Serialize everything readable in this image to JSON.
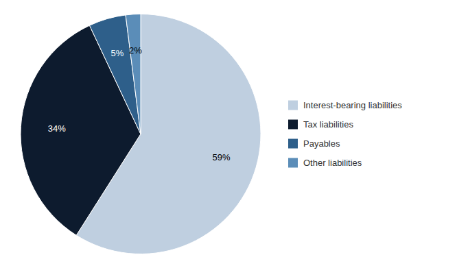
{
  "chart_data": {
    "type": "pie",
    "categories": [
      "Interest-bearing liabilities",
      "Tax liabilities",
      "Payables",
      "Other liabilities"
    ],
    "values": [
      59,
      34,
      5,
      2
    ],
    "value_labels": [
      "59%",
      "34%",
      "5%",
      "2%"
    ],
    "colors": [
      "#bfcfe0",
      "#0d1b2e",
      "#2e5f8a",
      "#5b8db8"
    ],
    "data_labels": true,
    "legend": "right"
  }
}
